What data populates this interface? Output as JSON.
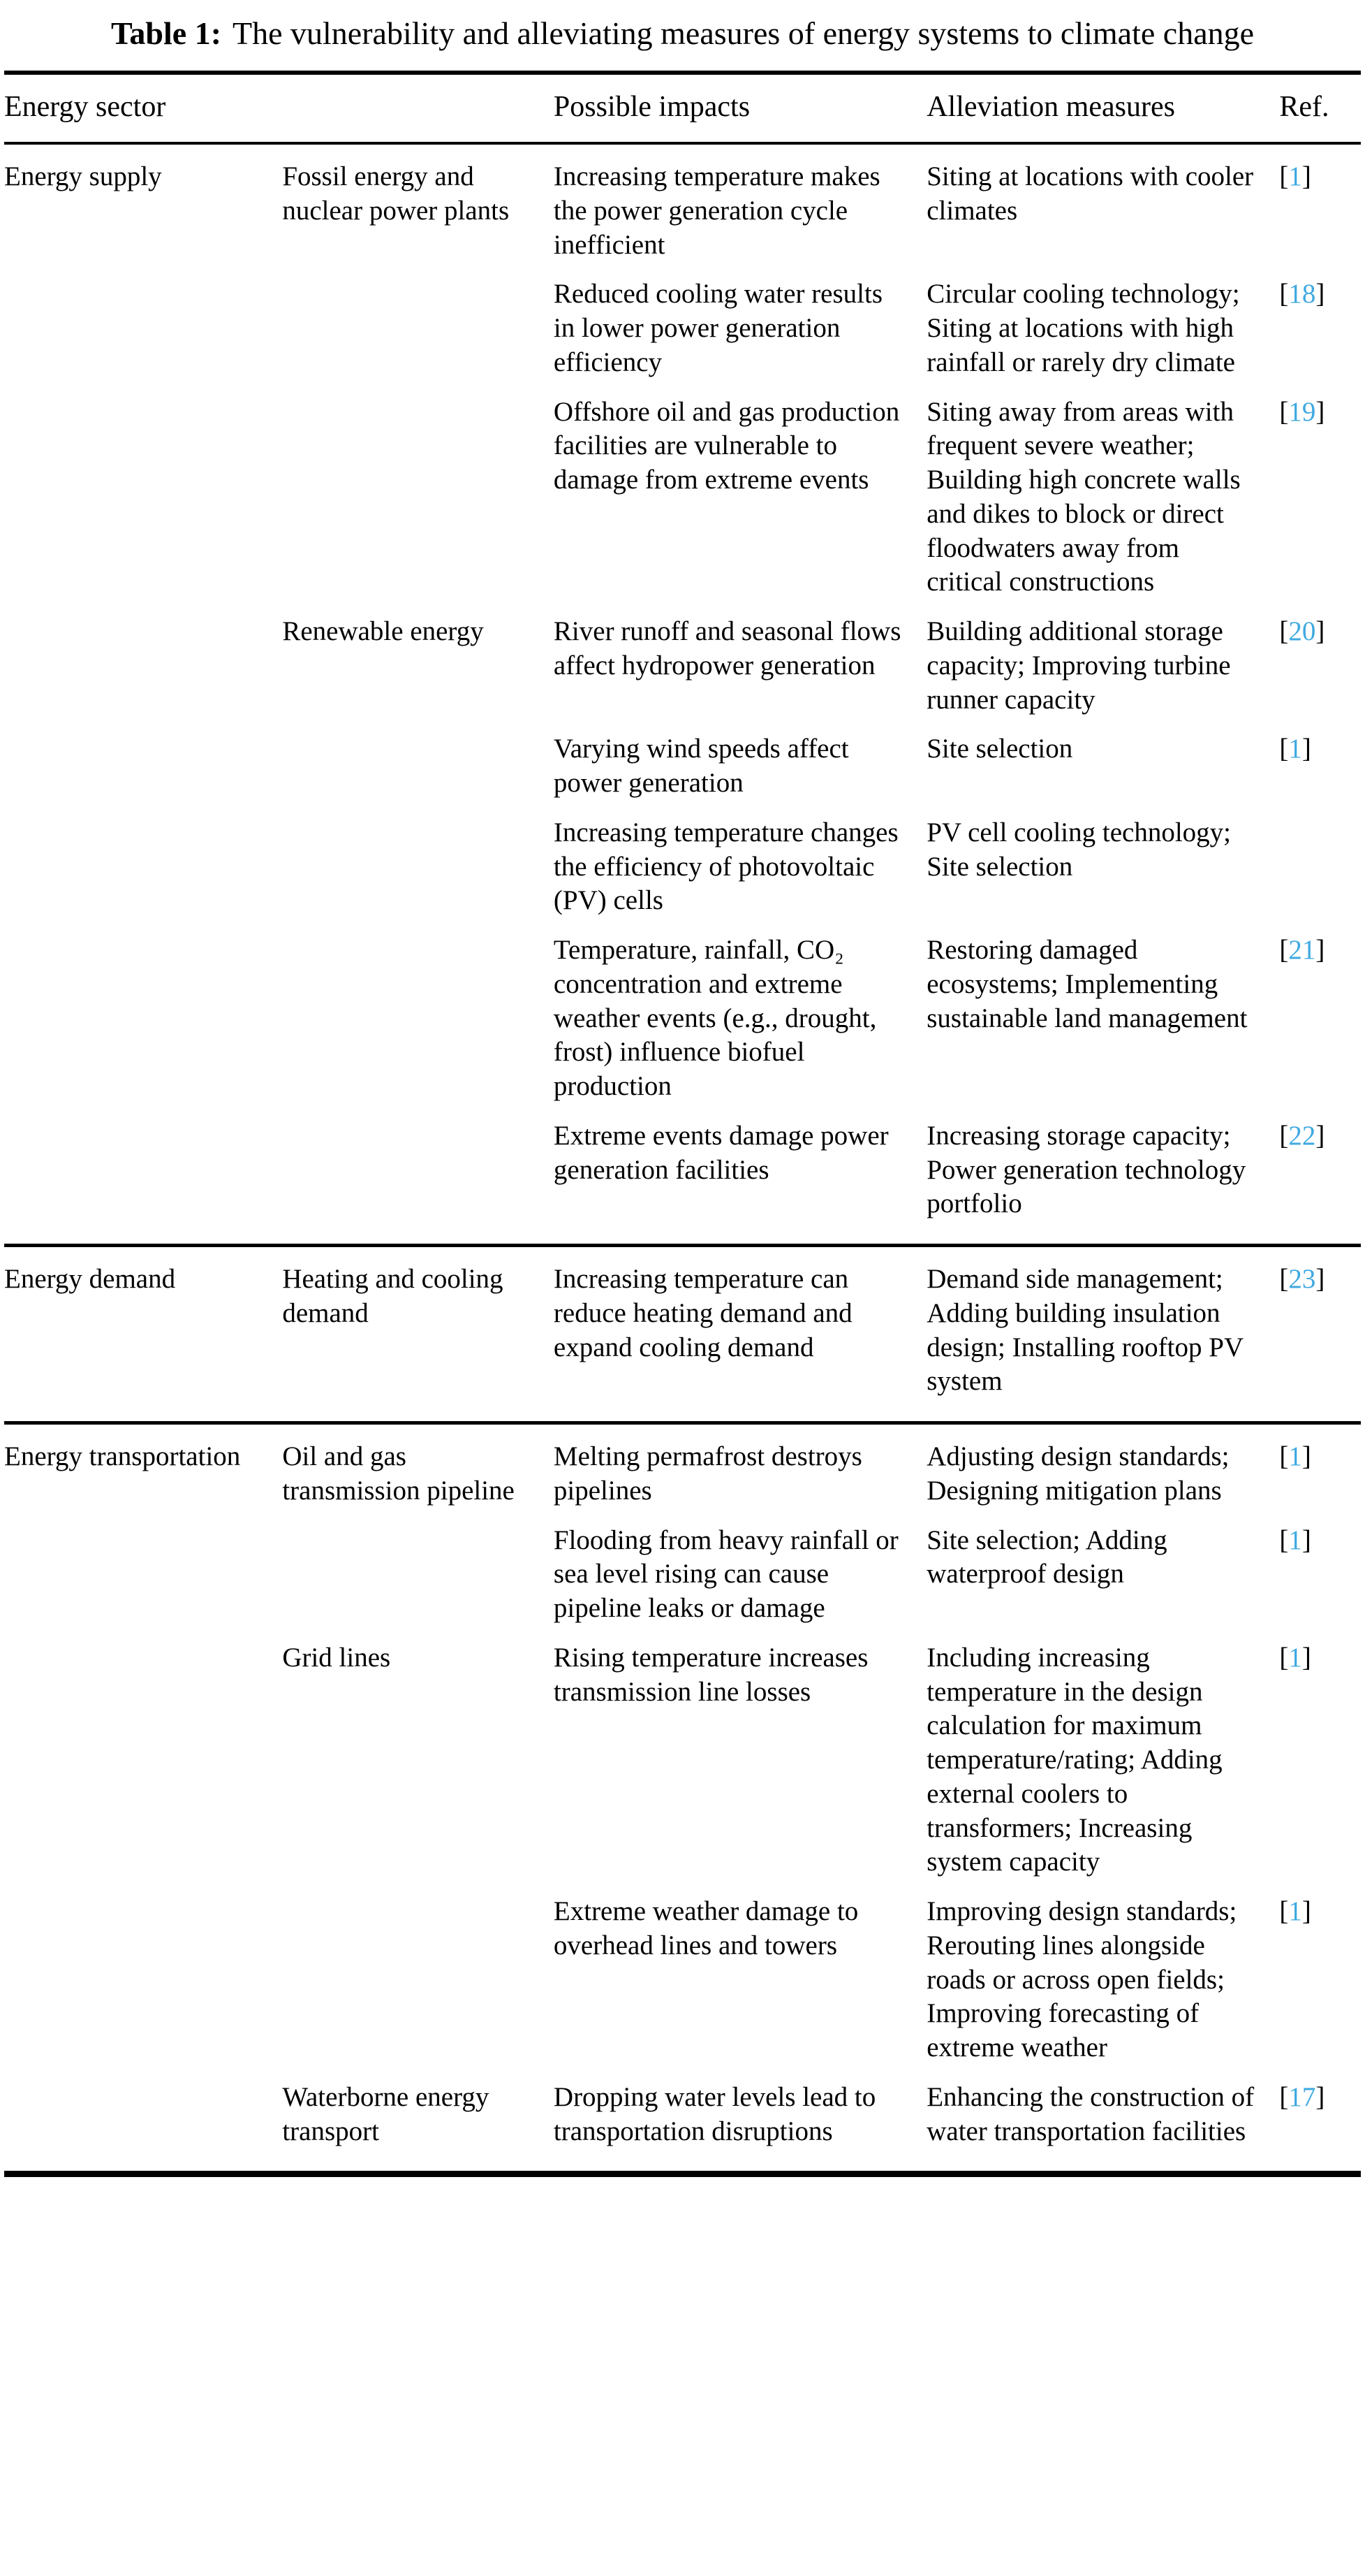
{
  "caption": {
    "label": "Table 1:",
    "text": "The vulnerability and alleviating measures of energy systems to climate change"
  },
  "colors": {
    "citation": "#3fa9e0"
  },
  "citation": {
    "open": "[",
    "close": "]"
  },
  "table": {
    "headers": [
      "Energy sector",
      "",
      "Possible impacts",
      "Alleviation measures",
      "Ref."
    ],
    "sections": [
      {
        "sector": "Energy supply",
        "subsectors": [
          {
            "name": "Fossil energy and nuclear power plants",
            "rows": [
              {
                "impact": "Increasing temperature makes the power generation cycle inefficient",
                "measure": "Siting at locations with cooler climates",
                "ref": "1"
              },
              {
                "impact": "Reduced cooling water results in lower power generation efficiency",
                "measure": "Circular cooling technology; Siting at locations with high rainfall or rarely dry climate",
                "ref": "18"
              },
              {
                "impact": "Offshore oil and gas production facilities are vulnerable to damage from extreme events",
                "measure": "Siting away from areas with frequent severe weather; Building high concrete walls and dikes to block or direct floodwaters away from critical constructions",
                "ref": "19"
              }
            ]
          },
          {
            "name": "Renewable energy",
            "rows": [
              {
                "impact": "River runoff and seasonal flows affect hydropower generation",
                "measure": "Building additional storage capacity; Improving turbine runner capacity",
                "ref": "20"
              },
              {
                "impact": "Varying wind speeds affect power generation",
                "measure": "Site selection",
                "ref": "1"
              },
              {
                "impact": "Increasing temperature changes the efficiency of photovoltaic (PV) cells",
                "measure": "PV cell cooling technology; Site selection",
                "ref": null
              },
              {
                "impact": "Temperature, rainfall, CO₂ concentration and extreme weather events (e.g., drought, frost) influence biofuel production",
                "measure": "Restoring damaged ecosystems; Implementing sustainable land management",
                "ref": "21"
              },
              {
                "impact": "Extreme events damage power generation facilities",
                "measure": "Increasing storage capacity; Power generation technology portfolio",
                "ref": "22"
              }
            ]
          }
        ]
      },
      {
        "sector": "Energy demand",
        "subsectors": [
          {
            "name": "Heating and cooling demand",
            "rows": [
              {
                "impact": "Increasing temperature can reduce heating demand and expand cooling demand",
                "measure": "Demand side management; Adding building insulation design; Installing rooftop PV system",
                "ref": "23"
              }
            ]
          }
        ]
      },
      {
        "sector": "Energy transportation",
        "subsectors": [
          {
            "name": "Oil and gas transmission pipeline",
            "rows": [
              {
                "impact": "Melting permafrost destroys pipelines",
                "measure": "Adjusting design standards; Designing mitigation plans",
                "ref": "1"
              },
              {
                "impact": "Flooding from heavy rainfall or sea level rising can cause pipeline leaks or damage",
                "measure": "Site selection; Adding waterproof design",
                "ref": "1"
              }
            ]
          },
          {
            "name": "Grid lines",
            "rows": [
              {
                "impact": "Rising temperature increases transmission line losses",
                "measure": "Including increasing temperature in the design calculation for maximum temperature/rating; Adding external coolers to transformers; Increasing system capacity",
                "ref": "1"
              },
              {
                "impact": "Extreme weather damage to overhead lines and towers",
                "measure": "Improving design standards; Rerouting lines alongside roads or across open fields; Improving forecasting of extreme weather",
                "ref": "1"
              }
            ]
          },
          {
            "name": "Waterborne energy transport",
            "rows": [
              {
                "impact": "Dropping water levels lead to transportation disruptions",
                "measure": "Enhancing the construction of water transportation facilities",
                "ref": "17"
              }
            ]
          }
        ]
      }
    ]
  }
}
